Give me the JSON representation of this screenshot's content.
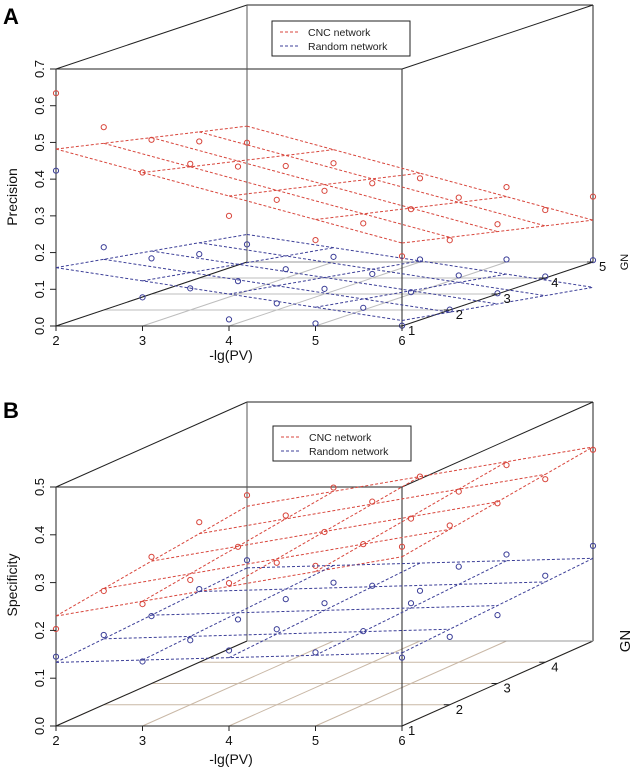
{
  "chart_data": [
    {
      "type": "scatter",
      "title": "A",
      "xlabel": "-lg(PV)",
      "ylabel": "GN",
      "zlabel": "Precision",
      "xlim": [
        2,
        6
      ],
      "ylim": [
        1,
        5
      ],
      "zlim": [
        0,
        0.7
      ],
      "x_ticks": [
        "2",
        "3",
        "4",
        "5",
        "6"
      ],
      "y_ticks": [
        "1",
        "2",
        "3",
        "4",
        "5"
      ],
      "z_ticks": [
        "0.0",
        "0.1",
        "0.2",
        "0.3",
        "0.4",
        "0.5",
        "0.6",
        "0.7"
      ],
      "x": [
        2,
        3,
        4,
        5,
        6
      ],
      "y": [
        1,
        2,
        3,
        4,
        5
      ],
      "grid": true,
      "legend_position": "top-center",
      "series": [
        {
          "name": "CNC network",
          "color": "#d8463c",
          "plane": {
            "intercept": 0.482,
            "slope_x": -0.064,
            "slope_y": -0.028
          },
          "z_by_gn": [
            [
              0.634,
              0.418,
              0.3,
              0.234,
              0.19
            ],
            [
              0.498,
              0.398,
              0.3,
              0.236,
              0.19
            ],
            [
              0.42,
              0.347,
              0.281,
              0.231,
              0.19
            ],
            [
              0.372,
              0.305,
              0.258,
              0.219,
              0.185
            ],
            [
              0.325,
              0.269,
              0.228,
              0.204,
              0.178
            ]
          ]
        },
        {
          "name": "Random network",
          "color": "#3c3f98",
          "plane": {
            "intercept": 0.159,
            "slope_x": -0.036,
            "slope_y": -0.021
          },
          "z_by_gn": [
            [
              0.423,
              0.078,
              0.018,
              0.007,
              0.001
            ],
            [
              0.171,
              0.059,
              0.018,
              0.006,
              0.001
            ],
            [
              0.097,
              0.035,
              0.014,
              0.005,
              0.002
            ],
            [
              0.065,
              0.024,
              0.011,
              0.007,
              0.004
            ],
            [
              0.048,
              0.014,
              0.007,
              0.007,
              0.005
            ]
          ]
        }
      ]
    },
    {
      "type": "scatter",
      "title": "B",
      "xlabel": "-lg(PV)",
      "ylabel": "GN",
      "zlabel": "Specificity",
      "xlim": [
        2,
        6
      ],
      "ylim": [
        1,
        5
      ],
      "zlim": [
        0,
        0.5
      ],
      "x_ticks": [
        "2",
        "3",
        "4",
        "5",
        "6"
      ],
      "y_ticks": [
        "1",
        "2",
        "3",
        "4"
      ],
      "z_ticks": [
        "0.0",
        "0.1",
        "0.2",
        "0.3",
        "0.4",
        "0.5"
      ],
      "x": [
        2,
        3,
        4,
        5,
        6
      ],
      "y": [
        1,
        2,
        3,
        4,
        5
      ],
      "grid": true,
      "legend_position": "top-center",
      "series": [
        {
          "name": "CNC network",
          "color": "#d8463c",
          "plane": {
            "intercept": 0.23,
            "slope_x": 0.031,
            "slope_y": 0.013
          },
          "z_by_gn": [
            [
              0.203,
              0.255,
              0.299,
              0.335,
              0.375
            ],
            [
              0.238,
              0.261,
              0.297,
              0.336,
              0.375
            ],
            [
              0.265,
              0.286,
              0.317,
              0.345,
              0.377
            ],
            [
              0.293,
              0.307,
              0.336,
              0.357,
              0.383
            ],
            [
              0.305,
              0.321,
              0.344,
              0.368,
              0.4
            ]
          ]
        },
        {
          "name": "Random network",
          "color": "#3c3f98",
          "plane": {
            "intercept": 0.133,
            "slope_x": 0.005,
            "slope_y": 0.005
          },
          "z_by_gn": [
            [
              0.145,
              0.135,
              0.158,
              0.154,
              0.143
            ],
            [
              0.146,
              0.135,
              0.158,
              0.154,
              0.142
            ],
            [
              0.141,
              0.134,
              0.168,
              0.168,
              0.143
            ],
            [
              0.153,
              0.132,
              0.16,
              0.2,
              0.181
            ],
            [
              0.169,
              0.122,
              0.105,
              0.181,
              0.199
            ]
          ]
        }
      ]
    }
  ]
}
